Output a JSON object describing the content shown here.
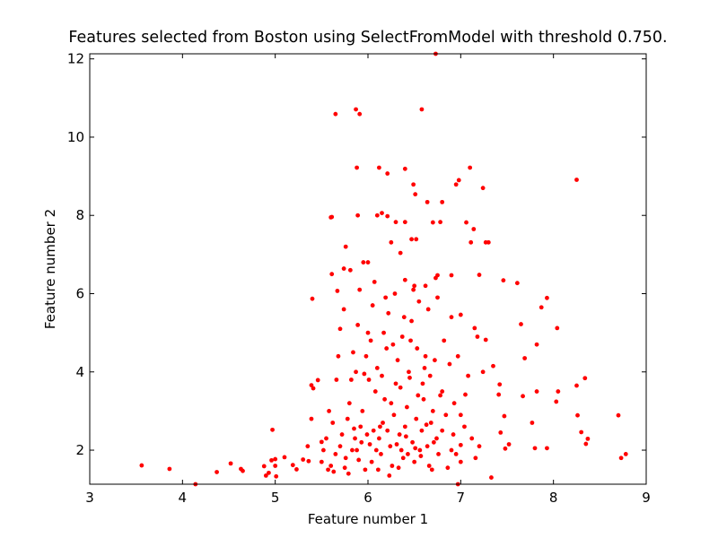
{
  "chart_data": {
    "type": "scatter",
    "title": "Features selected from Boston using SelectFromModel with threshold 0.750.",
    "xlabel": "Feature number 1",
    "ylabel": "Feature number 2",
    "color": "#ff0000",
    "xlim": [
      3,
      9
    ],
    "ylim": [
      1.13,
      12.13
    ],
    "xticks": [
      3,
      4,
      5,
      6,
      7,
      8,
      9
    ],
    "yticks": [
      2,
      4,
      6,
      8,
      10,
      12
    ],
    "x": [
      3.56,
      3.86,
      4.14,
      4.37,
      4.52,
      4.63,
      4.65,
      4.88,
      4.9,
      4.93,
      4.96,
      4.97,
      5.0,
      5.01,
      5.1,
      5.0,
      5.19,
      5.23,
      5.3,
      5.35,
      5.36,
      5.39,
      5.4,
      5.39,
      5.41,
      5.46,
      5.5,
      5.6,
      5.61,
      5.65,
      5.87,
      5.91,
      6.58,
      6.73,
      5.88,
      6.12,
      6.21,
      6.4,
      6.49,
      6.51,
      6.64,
      7.1,
      6.98,
      7.24,
      8.25,
      6.95,
      5.61,
      5.67,
      5.74,
      5.81,
      5.89,
      6.1,
      6.21,
      6.15,
      6.3,
      6.4,
      6.47,
      6.52,
      6.78,
      6.8,
      6.7,
      7.06,
      7.14,
      7.11,
      7.27,
      7.3,
      6.25,
      6.35,
      5.76,
      5.95,
      6.0,
      6.4,
      6.5,
      6.62,
      6.75,
      6.9,
      7.2,
      7.46,
      7.61,
      7.93,
      7.87,
      8.04,
      7.65,
      7.82,
      7.69,
      8.34,
      8.25,
      8.05,
      7.82,
      7.67,
      7.42,
      7.35,
      7.41,
      7.05,
      7.24,
      7.27,
      7.18,
      7.15,
      6.9,
      7.0,
      8.7,
      8.73,
      8.78,
      8.37,
      8.35,
      8.3,
      8.26,
      8.03,
      7.93,
      7.8,
      7.77,
      7.52,
      7.48,
      7.47,
      7.43,
      7.33,
      7.2,
      7.0,
      6.97,
      7.0,
      6.8,
      5.57,
      5.6,
      5.63,
      5.65,
      5.7,
      5.72,
      5.75,
      5.78,
      5.8,
      5.82,
      5.84,
      5.86,
      5.88,
      5.9,
      5.92,
      5.94,
      5.96,
      5.98,
      6.0,
      6.02,
      6.04,
      6.06,
      6.08,
      6.1,
      6.12,
      6.14,
      6.16,
      6.18,
      6.2,
      6.22,
      6.24,
      6.26,
      6.28,
      6.3,
      6.32,
      6.34,
      6.36,
      6.38,
      6.4,
      6.42,
      6.44,
      6.46,
      6.48,
      6.5,
      6.52,
      6.54,
      6.56,
      6.58,
      6.6,
      6.62,
      6.64,
      6.66,
      6.68,
      6.7,
      6.72,
      6.74,
      6.76,
      6.8,
      6.84,
      6.88,
      6.92,
      6.95,
      5.5,
      5.52,
      5.55,
      5.58,
      5.62,
      5.66,
      5.68,
      5.7,
      5.74,
      5.76,
      5.79,
      5.83,
      5.85,
      5.87,
      5.89,
      5.91,
      5.93,
      5.97,
      5.99,
      6.01,
      6.03,
      6.05,
      6.07,
      6.09,
      6.11,
      6.13,
      6.15,
      6.17,
      6.19,
      6.21,
      6.23,
      6.25,
      6.27,
      6.29,
      6.31,
      6.33,
      6.35,
      6.37,
      6.39,
      6.41,
      6.43,
      6.45,
      6.47,
      6.49,
      6.51,
      6.53,
      6.55,
      6.57,
      6.59,
      6.61,
      6.63,
      6.65,
      6.67,
      6.69,
      6.71,
      6.73,
      6.75,
      6.78,
      6.82,
      6.86,
      6.9,
      6.93,
      6.97,
      7.0,
      7.04,
      7.08,
      7.12,
      7.16
    ],
    "values": [
      1.61,
      1.52,
      1.13,
      1.44,
      1.66,
      1.52,
      1.47,
      1.59,
      1.35,
      1.42,
      1.74,
      2.52,
      1.77,
      1.33,
      1.82,
      1.6,
      1.62,
      1.51,
      1.76,
      2.1,
      1.72,
      2.8,
      5.87,
      3.66,
      3.58,
      3.79,
      2.21,
      7.95,
      7.96,
      10.59,
      10.71,
      10.59,
      10.71,
      12.13,
      9.22,
      9.22,
      9.07,
      9.19,
      8.79,
      8.54,
      8.34,
      9.22,
      8.9,
      8.7,
      8.91,
      8.79,
      6.5,
      6.07,
      6.64,
      6.6,
      8.0,
      8.0,
      7.98,
      8.06,
      7.83,
      7.83,
      7.39,
      7.39,
      7.83,
      8.34,
      7.82,
      7.82,
      7.65,
      7.31,
      7.31,
      7.31,
      7.31,
      7.04,
      7.2,
      6.8,
      6.8,
      6.35,
      6.2,
      6.2,
      6.47,
      6.47,
      6.48,
      6.34,
      6.27,
      5.89,
      5.65,
      5.12,
      5.22,
      4.7,
      4.35,
      3.84,
      3.65,
      3.5,
      3.5,
      3.38,
      3.68,
      4.15,
      3.42,
      3.42,
      4.0,
      4.82,
      4.9,
      5.12,
      5.4,
      5.46,
      2.89,
      1.8,
      1.9,
      2.29,
      2.16,
      2.46,
      2.89,
      3.24,
      2.05,
      2.05,
      2.7,
      2.15,
      2.04,
      2.87,
      2.45,
      1.3,
      2.1,
      2.13,
      1.13,
      2.9,
      2.5,
      1.5,
      1.6,
      1.45,
      1.9,
      2.1,
      2.4,
      1.55,
      2.8,
      3.2,
      3.8,
      4.5,
      2.3,
      2.0,
      1.75,
      2.6,
      3.0,
      3.95,
      4.4,
      5.0,
      2.15,
      1.7,
      2.5,
      3.5,
      4.1,
      2.3,
      1.9,
      2.7,
      3.3,
      4.6,
      5.5,
      2.1,
      1.6,
      2.9,
      3.7,
      4.3,
      2.4,
      2.0,
      1.8,
      2.6,
      3.1,
      4.0,
      4.8,
      2.2,
      1.7,
      2.8,
      3.4,
      2.0,
      2.5,
      3.3,
      4.4,
      2.1,
      1.6,
      2.7,
      3.0,
      4.3,
      2.3,
      1.9,
      3.5,
      2.9,
      4.2,
      2.4,
      1.9,
      1.7,
      2.0,
      2.3,
      3.0,
      2.7,
      3.8,
      4.4,
      5.1,
      5.6,
      1.8,
      1.4,
      2.0,
      2.55,
      4.0,
      5.2,
      6.1,
      2.2,
      1.5,
      2.4,
      3.8,
      4.8,
      5.7,
      6.3,
      2.0,
      1.5,
      2.6,
      3.9,
      5.0,
      5.9,
      2.5,
      1.35,
      3.2,
      4.7,
      6.0,
      2.15,
      1.55,
      3.6,
      4.9,
      5.4,
      2.35,
      1.9,
      3.85,
      5.3,
      6.1,
      2.05,
      4.6,
      5.8,
      1.85,
      3.7,
      4.1,
      2.65,
      5.6,
      3.9,
      1.5,
      2.2,
      6.4,
      5.9,
      3.4,
      4.8,
      1.55,
      2.0,
      3.2,
      4.4,
      1.7,
      2.6,
      3.9,
      2.3,
      1.8
    ]
  }
}
